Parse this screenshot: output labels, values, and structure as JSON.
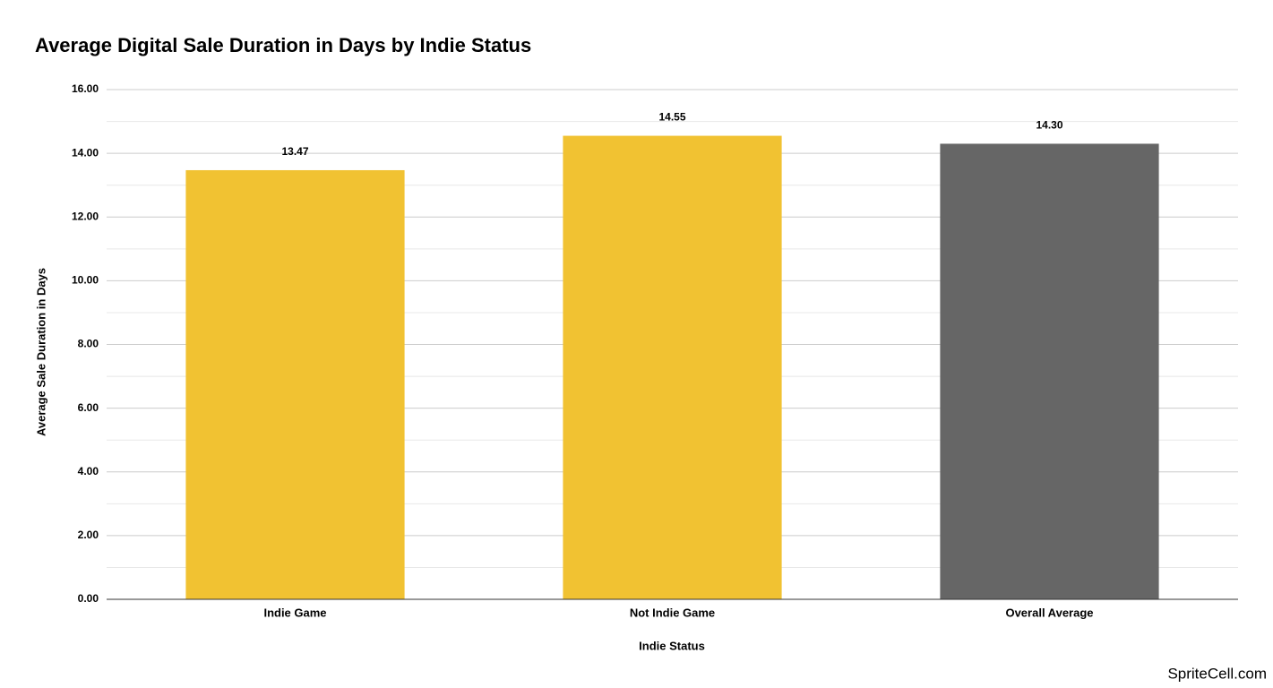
{
  "chart_data": {
    "type": "bar",
    "title": "Average Digital Sale Duration in Days by Indie Status",
    "x_label": "Indie Status",
    "y_label": "Average Sale Duration in Days",
    "categories": [
      "Indie Game",
      "Not Indie Game",
      "Overall Average"
    ],
    "values": [
      13.47,
      14.55,
      14.3
    ],
    "value_labels": [
      "13.47",
      "14.55",
      "14.30"
    ],
    "colors": [
      "#f1c232",
      "#f1c232",
      "#666666"
    ],
    "ylim": [
      0,
      16
    ],
    "yticks": [
      {
        "value": 0,
        "label": "0.00"
      },
      {
        "value": 2,
        "label": "2.00"
      },
      {
        "value": 4,
        "label": "4.00"
      },
      {
        "value": 6,
        "label": "6.00"
      },
      {
        "value": 8,
        "label": "8.00"
      },
      {
        "value": 10,
        "label": "10.00"
      },
      {
        "value": 12,
        "label": "12.00"
      },
      {
        "value": 14,
        "label": "14.00"
      },
      {
        "value": 16,
        "label": "16.00"
      }
    ],
    "grid": true,
    "minor_grid": true,
    "watermark": "SpriteCell.com"
  }
}
